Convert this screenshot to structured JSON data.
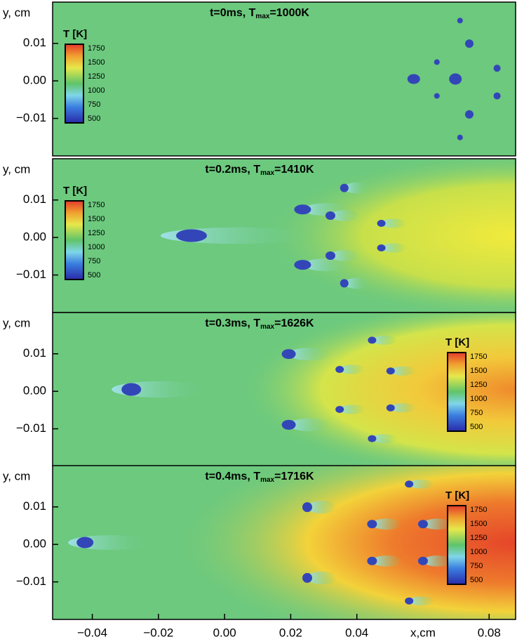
{
  "chart_data": [
    {
      "type": "heatmap",
      "title_parts": [
        "t=0ms, T",
        "max",
        "=1000K"
      ],
      "ylabel": "y, cm",
      "ylim": [
        -0.02,
        0.021
      ],
      "yticks": [
        {
          "value": 0.01,
          "label": "0.01"
        },
        {
          "value": 0,
          "label": "0.00"
        },
        {
          "value": -0.01,
          "label": "−0.01"
        }
      ],
      "colorbar": {
        "label": "T [K]",
        "lim": [
          500,
          1750
        ],
        "ticks": [
          500,
          750,
          1000,
          1250,
          1500,
          1750
        ],
        "corner": "upper left"
      }
    },
    {
      "type": "heatmap",
      "title_parts": [
        "t=0.2ms, T",
        "max",
        "=1410K"
      ],
      "ylabel": "y, cm",
      "ylim": [
        -0.02,
        0.021
      ],
      "yticks": [
        {
          "value": 0.01,
          "label": "0.01"
        },
        {
          "value": 0,
          "label": "0.00"
        },
        {
          "value": -0.01,
          "label": "−0.01"
        }
      ],
      "colorbar": {
        "label": "T [K]",
        "lim": [
          500,
          1750
        ],
        "ticks": [
          500,
          750,
          1000,
          1250,
          1500,
          1750
        ],
        "corner": "upper left"
      }
    },
    {
      "type": "heatmap",
      "title_parts": [
        "t=0.3ms, T",
        "max",
        "=1626K"
      ],
      "ylabel": "y, cm",
      "ylim": [
        -0.02,
        0.021
      ],
      "yticks": [
        {
          "value": 0.01,
          "label": "0.01"
        },
        {
          "value": 0,
          "label": "0.00"
        },
        {
          "value": -0.01,
          "label": "−0.01"
        }
      ],
      "colorbar": {
        "label": "T [K]",
        "lim": [
          500,
          1750
        ],
        "ticks": [
          500,
          750,
          1000,
          1250,
          1500,
          1750
        ],
        "corner": "right"
      }
    },
    {
      "type": "heatmap",
      "title_parts": [
        "t=0.4ms, T",
        "max",
        "=1716K"
      ],
      "ylabel": "y, cm",
      "ylim": [
        -0.02,
        0.021
      ],
      "yticks": [
        {
          "value": 0.01,
          "label": "0.01"
        },
        {
          "value": 0,
          "label": "0.00"
        },
        {
          "value": -0.01,
          "label": "−0.01"
        }
      ],
      "colorbar": {
        "label": "T [K]",
        "lim": [
          500,
          1750
        ],
        "ticks": [
          500,
          750,
          1000,
          1250,
          1500,
          1750
        ],
        "corner": "right"
      },
      "xlabel": "x,cm",
      "xlim": [
        -0.052,
        0.088
      ],
      "xticks": [
        {
          "value": -0.04,
          "label": "−0.04"
        },
        {
          "value": -0.02,
          "label": "−0.02"
        },
        {
          "value": 0,
          "label": "0.00"
        },
        {
          "value": 0.02,
          "label": "0.02"
        },
        {
          "value": 0.04,
          "label": "0.04"
        },
        {
          "value": 0.08,
          "label": "0.08"
        }
      ]
    }
  ]
}
